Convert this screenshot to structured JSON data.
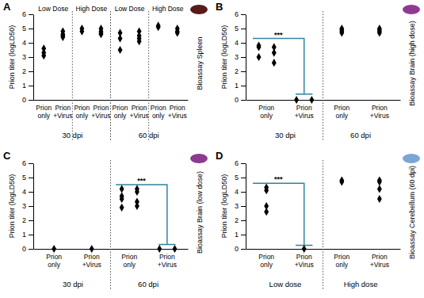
{
  "chart_data": [
    {
      "type": "scatter",
      "panel": "A",
      "y_label": "Prion titer (logLD50)",
      "side_label": "Bioassay Spleen",
      "marker": "diamond",
      "color": "#000000",
      "categories": [
        "Prion only",
        "Prion +Virus",
        "Prion only",
        "Prion +Virus",
        "Prion only",
        "Prion +Virus",
        "Prion only",
        "Prion +Virus"
      ],
      "values": [
        [
          [
            3.6,
            3.3,
            3.1
          ]
        ],
        [
          [
            4.8,
            4.6,
            4.5,
            4.4
          ]
        ],
        [
          [
            5.0,
            4.8
          ]
        ],
        [
          [
            5.0,
            4.8,
            4.7,
            4.6
          ]
        ],
        [
          [
            4.7,
            4.3,
            3.5
          ]
        ],
        [
          [
            4.8,
            4.5,
            4.3,
            4.1
          ]
        ],
        [
          [
            5.2,
            5.1
          ]
        ],
        [
          [
            5.0,
            4.8,
            4.7
          ]
        ]
      ],
      "groups": [
        {
          "label": "30 dpi",
          "count": 4
        },
        {
          "label": "60 dpi",
          "count": 4
        }
      ],
      "top_groups": [
        {
          "label": "Low Dose",
          "count": 2
        },
        {
          "label": "High Dose",
          "count": 2
        },
        {
          "label": "Low Dose",
          "count": 2
        },
        {
          "label": "High Dose",
          "count": 2
        }
      ],
      "ylim": [
        0,
        6
      ],
      "yticks": [
        0,
        1,
        2,
        3,
        4,
        5,
        6
      ],
      "annotations": []
    },
    {
      "type": "scatter",
      "panel": "B",
      "y_label": "Prion titer (logLD50)",
      "side_label": "Bioassay Brain (high dose)",
      "marker": "diamond",
      "color": "#000000",
      "categories": [
        "Prion only",
        "Prion +Virus",
        "Prion only",
        "Prion +Virus"
      ],
      "values": [
        [
          [
            3.8,
            3.7,
            3.0
          ],
          [
            3.7,
            3.3,
            2.6
          ]
        ],
        [
          [
            0
          ],
          [
            0
          ]
        ],
        [
          [
            5.0,
            4.9,
            4.8,
            4.7
          ]
        ],
        [
          [
            5.0,
            4.9,
            4.8,
            4.7
          ]
        ]
      ],
      "groups": [
        {
          "label": "30 dpi",
          "count": 2
        },
        {
          "label": "60 dpi",
          "count": 2
        }
      ],
      "ylim": [
        0,
        6
      ],
      "yticks": [
        0,
        1,
        2,
        3,
        4,
        5,
        6
      ],
      "annotations": [
        {
          "text": "***",
          "from": 0,
          "to": 1,
          "y_top": 4.3,
          "y_bottom": 0.4,
          "color": "#31849b"
        }
      ]
    },
    {
      "type": "scatter",
      "panel": "C",
      "y_label": "Prion titer (logLD50)",
      "side_label": "Bioassay Brain (low dose)",
      "marker": "diamond",
      "color": "#000000",
      "categories": [
        "Prion only",
        "Prion +Virus",
        "Prion only",
        "Prion +Virus"
      ],
      "values": [
        [
          [
            0
          ]
        ],
        [
          [
            0
          ]
        ],
        [
          [
            4.2,
            3.7,
            3.5,
            2.9
          ],
          [
            4.2,
            4.0,
            3.3,
            3.0
          ]
        ],
        [
          [
            0
          ],
          [
            0
          ]
        ]
      ],
      "groups": [
        {
          "label": "30 dpi",
          "count": 2
        },
        {
          "label": "60 dpi",
          "count": 2
        }
      ],
      "ylim": [
        0,
        6
      ],
      "yticks": [
        0,
        1,
        2,
        3,
        4,
        5,
        6
      ],
      "annotations": [
        {
          "text": "***",
          "from": 2,
          "to": 3,
          "y_top": 4.5,
          "y_bottom": 0.3,
          "color": "#31849b"
        }
      ]
    },
    {
      "type": "scatter",
      "panel": "D",
      "y_label": "Prion titer (logLD50)",
      "side_label": "Bioassay Cerebellum (60 dpi)",
      "marker": "diamond",
      "color": "#000000",
      "categories": [
        "Prion only",
        "Prion +Virus",
        "Prion only",
        "Prion +Virus"
      ],
      "values": [
        [
          [
            4.3,
            4.1,
            3.0,
            2.6
          ]
        ],
        [
          [
            0
          ]
        ],
        [
          [
            4.8,
            4.7
          ]
        ],
        [
          [
            4.8,
            4.7,
            4.2,
            3.5
          ]
        ]
      ],
      "groups": [
        {
          "label": "Low dose",
          "count": 2
        },
        {
          "label": "High dose",
          "count": 2
        }
      ],
      "ylim": [
        0,
        6
      ],
      "yticks": [
        0,
        1,
        2,
        3,
        4,
        5,
        6
      ],
      "annotations": [
        {
          "text": "***",
          "from": 0,
          "to": 1,
          "y_top": 4.6,
          "y_bottom": 0.25,
          "color": "#31849b"
        }
      ]
    }
  ]
}
